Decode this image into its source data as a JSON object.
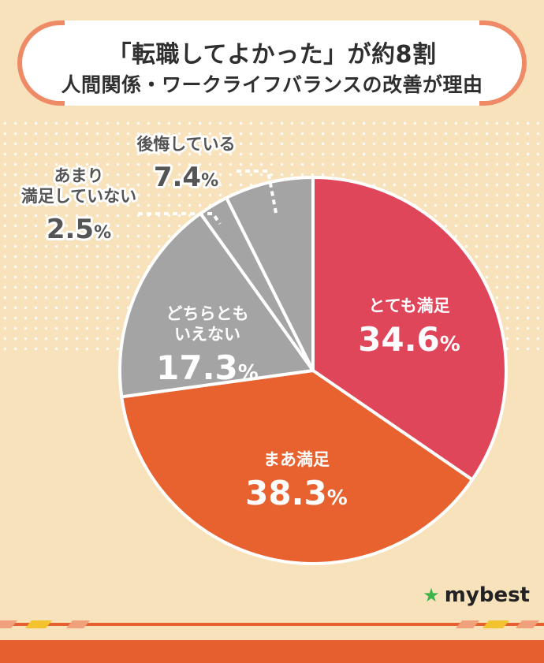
{
  "title": {
    "line1": "「転職してよかった」が約8割",
    "line2": "人間関係・ワークライフバランスの改善が理由"
  },
  "chart_data": {
    "type": "pie",
    "unit": "%",
    "slices": [
      {
        "label_lines": [
          "とても満足"
        ],
        "value": 34.6,
        "color": "#e0465a"
      },
      {
        "label_lines": [
          "まあ満足"
        ],
        "value": 38.3,
        "color": "#e8622f"
      },
      {
        "label_lines": [
          "どちらとも",
          "いえない"
        ],
        "value": 17.3,
        "color": "#a4a4a4"
      },
      {
        "label_lines": [
          "あまり",
          "満足していない"
        ],
        "value": 2.5,
        "color": "#a4a4a4"
      },
      {
        "label_lines": [
          "後悔している"
        ],
        "value": 7.4,
        "color": "#a4a4a4"
      }
    ]
  },
  "logo": {
    "name": "mybest",
    "icon": "star-icon"
  }
}
